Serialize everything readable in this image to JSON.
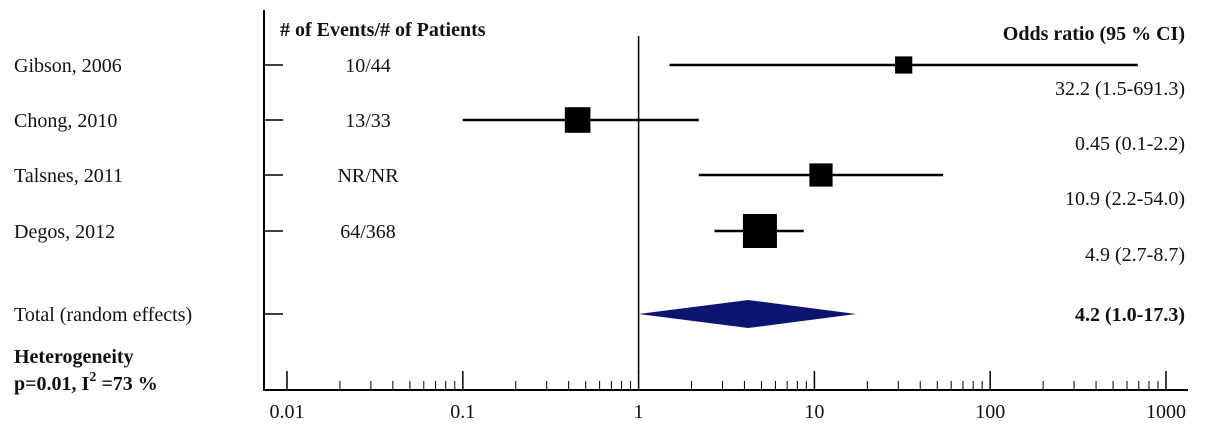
{
  "chart_data": {
    "type": "forest",
    "x_scale": "log",
    "xlim": [
      0.01,
      1000
    ],
    "x_ticks": [
      {
        "value": 0.01,
        "label": "0.01"
      },
      {
        "value": 0.1,
        "label": "0.1"
      },
      {
        "value": 1,
        "label": "1"
      },
      {
        "value": 10,
        "label": "10"
      },
      {
        "value": 100,
        "label": "100"
      },
      {
        "value": 1000,
        "label": "1000"
      }
    ],
    "reference_line": 1,
    "column_headers": {
      "events": "# of Events/# of Patients",
      "or": "Odds ratio (95 % CI)"
    },
    "studies": [
      {
        "label": "Gibson, 2006",
        "events": "10/44",
        "or": 32.2,
        "lower": 1.5,
        "upper": 691.3,
        "or_text": "32.2 (1.5-691.3)",
        "weight": 0.3
      },
      {
        "label": "Chong, 2010",
        "events": "13/33",
        "or": 0.45,
        "lower": 0.1,
        "upper": 2.2,
        "or_text": "0.45 (0.1-2.2)",
        "weight": 0.65
      },
      {
        "label": "Talsnes, 2011",
        "events": "NR/NR",
        "or": 10.9,
        "lower": 2.2,
        "upper": 54.0,
        "or_text": "10.9 (2.2-54.0)",
        "weight": 0.55
      },
      {
        "label": "Degos, 2012",
        "events": "64/368",
        "or": 4.9,
        "lower": 2.7,
        "upper": 8.7,
        "or_text": "4.9 (2.7-8.7)",
        "weight": 1.0
      }
    ],
    "total": {
      "label": "Total (random effects)",
      "or": 4.2,
      "lower": 1.0,
      "upper": 17.3,
      "or_text": "4.2 (1.0-17.3)"
    },
    "heterogeneity": {
      "title": "Heterogeneity",
      "stat": "p=0.01, I",
      "sup": "2",
      "tail": " =73 %"
    },
    "colors": {
      "diamond": "#0d1570",
      "marks": "#000000"
    }
  }
}
